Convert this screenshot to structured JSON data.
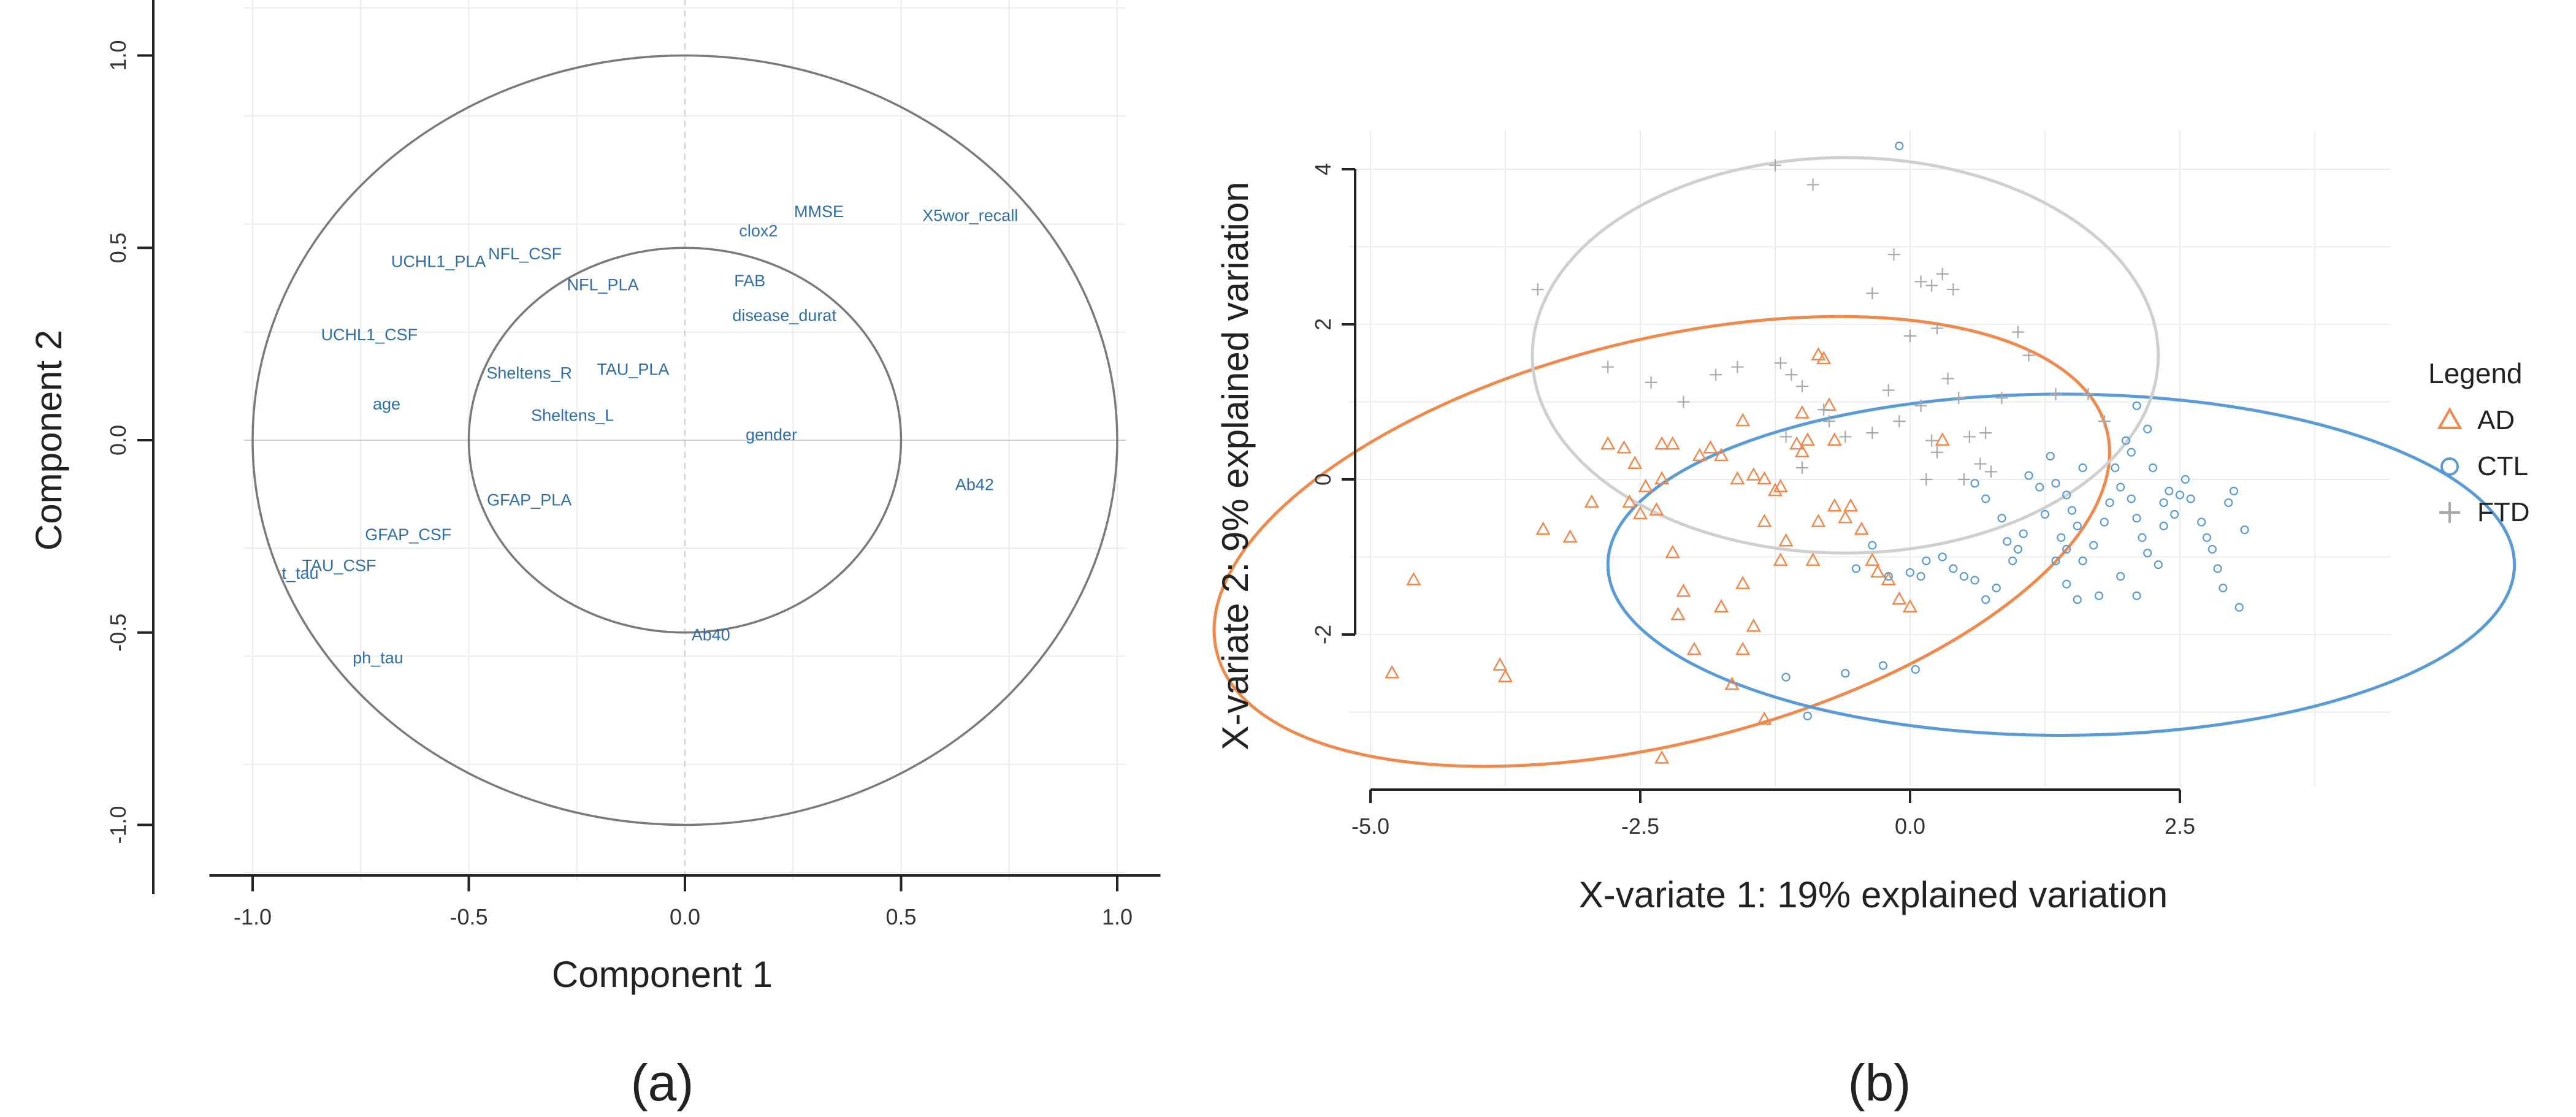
{
  "chart_data": [
    {
      "type": "scatter",
      "subtype": "correlation-circle",
      "panel_label": "(a)",
      "xlabel": "Component 1",
      "ylabel": "Component 2",
      "xlim": [
        -1.1,
        1.1
      ],
      "ylim": [
        -1.05,
        1.05
      ],
      "x_ticks": [
        -1.0,
        -0.5,
        0.0,
        0.5,
        1.0
      ],
      "y_ticks": [
        -1.0,
        -0.5,
        0.0,
        0.5,
        1.0
      ],
      "x_tick_labels": [
        "-1.0",
        "-0.5",
        "0.0",
        "0.5",
        "1.0"
      ],
      "y_tick_labels": [
        "-1.0",
        "-0.5",
        "0.0",
        "0.5",
        "1.0"
      ],
      "circles": [
        1.0,
        0.5
      ],
      "variables": [
        {
          "name": "UCHL1_PLA",
          "x": -0.57,
          "y": 0.45
        },
        {
          "name": "NFL_CSF",
          "x": -0.37,
          "y": 0.47
        },
        {
          "name": "NFL_PLA",
          "x": -0.19,
          "y": 0.39
        },
        {
          "name": "clox2",
          "x": 0.17,
          "y": 0.53
        },
        {
          "name": "MMSE",
          "x": 0.31,
          "y": 0.58
        },
        {
          "name": "X5wor_recall",
          "x": 0.66,
          "y": 0.57
        },
        {
          "name": "FAB",
          "x": 0.15,
          "y": 0.4
        },
        {
          "name": "disease_durat",
          "x": 0.23,
          "y": 0.31
        },
        {
          "name": "UCHL1_CSF",
          "x": -0.73,
          "y": 0.26
        },
        {
          "name": "Sheltens_R",
          "x": -0.36,
          "y": 0.16
        },
        {
          "name": "TAU_PLA",
          "x": -0.12,
          "y": 0.17
        },
        {
          "name": "age",
          "x": -0.69,
          "y": 0.08
        },
        {
          "name": "Sheltens_L",
          "x": -0.26,
          "y": 0.05
        },
        {
          "name": "gender",
          "x": 0.2,
          "y": 0.0
        },
        {
          "name": "Ab42",
          "x": 0.67,
          "y": -0.13
        },
        {
          "name": "GFAP_PLA",
          "x": -0.36,
          "y": -0.17
        },
        {
          "name": "GFAP_CSF",
          "x": -0.64,
          "y": -0.26
        },
        {
          "name": "TAU_CSF",
          "x": -0.8,
          "y": -0.34
        },
        {
          "name": "t_tau",
          "x": -0.89,
          "y": -0.36
        },
        {
          "name": "Ab40",
          "x": 0.06,
          "y": -0.52
        },
        {
          "name": "ph_tau",
          "x": -0.71,
          "y": -0.58
        }
      ]
    },
    {
      "type": "scatter",
      "subtype": "sample-plot-with-ellipses",
      "panel_label": "(b)",
      "xlabel": "X-variate 1: 19% explained variation",
      "ylabel": "X-variate 2: 9% explained variation",
      "xlim": [
        -5.2,
        4.5
      ],
      "ylim": [
        -4.0,
        4.5
      ],
      "x_ticks": [
        -5.0,
        -2.5,
        0.0,
        2.5
      ],
      "y_ticks": [
        -2,
        0,
        2,
        4
      ],
      "x_tick_labels": [
        "-5.0",
        "-2.5",
        "0.0",
        "2.5"
      ],
      "y_tick_labels": [
        "-2",
        "0",
        "2",
        "4"
      ],
      "legend": {
        "title": "Legend",
        "position": "right",
        "entries": [
          {
            "label": "AD",
            "marker": "triangle",
            "color": "#ef8a4e"
          },
          {
            "label": "CTL",
            "marker": "circle",
            "color": "#5b9bd5"
          },
          {
            "label": "FTD",
            "marker": "plus",
            "color": "#b3b3b3"
          }
        ]
      },
      "ellipses": [
        {
          "group": "AD",
          "cx": -2.3,
          "cy": -0.8,
          "rx": 4.25,
          "ry": 2.6,
          "angle_deg": 14,
          "color": "#ef8a4e"
        },
        {
          "group": "CTL",
          "cx": 1.4,
          "cy": -1.1,
          "rx": 4.2,
          "ry": 2.2,
          "angle_deg": 0,
          "color": "#5b9bd5"
        },
        {
          "group": "FTD",
          "cx": -0.6,
          "cy": 1.6,
          "rx": 2.9,
          "ry": 2.55,
          "angle_deg": 0,
          "color": "#cfcfcf"
        }
      ],
      "series": [
        {
          "name": "AD",
          "points": [
            [
              -4.6,
              -1.3
            ],
            [
              -4.8,
              -2.5
            ],
            [
              -3.8,
              -2.4
            ],
            [
              -3.75,
              -2.55
            ],
            [
              -3.4,
              -0.65
            ],
            [
              -3.15,
              -0.75
            ],
            [
              -2.95,
              -0.3
            ],
            [
              -2.8,
              0.45
            ],
            [
              -2.65,
              0.4
            ],
            [
              -2.55,
              0.2
            ],
            [
              -2.45,
              -0.1
            ],
            [
              -2.6,
              -0.3
            ],
            [
              -2.5,
              -0.45
            ],
            [
              -2.35,
              -0.4
            ],
            [
              -2.3,
              0.0
            ],
            [
              -2.2,
              -0.95
            ],
            [
              -2.1,
              -1.45
            ],
            [
              -2.15,
              -1.75
            ],
            [
              -2.0,
              -2.2
            ],
            [
              -2.3,
              0.45
            ],
            [
              -2.2,
              0.45
            ],
            [
              -1.95,
              0.3
            ],
            [
              -1.85,
              0.4
            ],
            [
              -1.75,
              0.3
            ],
            [
              -1.6,
              0.0
            ],
            [
              -1.55,
              -2.2
            ],
            [
              -1.45,
              -1.9
            ],
            [
              -1.65,
              -2.65
            ],
            [
              -1.75,
              -1.65
            ],
            [
              -1.55,
              -1.35
            ],
            [
              -1.45,
              0.05
            ],
            [
              -1.35,
              0.0
            ],
            [
              -1.25,
              -0.15
            ],
            [
              -1.2,
              -0.1
            ],
            [
              -1.35,
              -0.55
            ],
            [
              -1.15,
              -0.8
            ],
            [
              -1.2,
              -1.05
            ],
            [
              -1.05,
              0.45
            ],
            [
              -1.0,
              0.35
            ],
            [
              -0.95,
              0.5
            ],
            [
              -1.0,
              0.85
            ],
            [
              -0.85,
              1.6
            ],
            [
              -0.8,
              1.55
            ],
            [
              -0.75,
              0.95
            ],
            [
              -0.7,
              0.5
            ],
            [
              -0.7,
              -0.35
            ],
            [
              -0.6,
              -0.5
            ],
            [
              -0.45,
              -0.65
            ],
            [
              -0.35,
              -1.05
            ],
            [
              -0.3,
              -1.2
            ],
            [
              -0.2,
              -1.3
            ],
            [
              -0.1,
              -1.55
            ],
            [
              0.0,
              -1.65
            ],
            [
              -0.85,
              -0.55
            ],
            [
              -1.55,
              0.75
            ],
            [
              -1.35,
              -3.1
            ],
            [
              -0.9,
              -1.05
            ],
            [
              0.3,
              0.5
            ],
            [
              -0.55,
              -0.35
            ],
            [
              -2.3,
              -3.6
            ]
          ]
        },
        {
          "name": "CTL",
          "points": [
            [
              -0.1,
              4.3
            ],
            [
              0.6,
              -0.05
            ],
            [
              0.7,
              -0.25
            ],
            [
              0.85,
              -0.5
            ],
            [
              0.9,
              -0.8
            ],
            [
              0.95,
              -1.05
            ],
            [
              1.0,
              -0.9
            ],
            [
              1.05,
              -0.7
            ],
            [
              0.8,
              -1.4
            ],
            [
              0.7,
              -1.55
            ],
            [
              0.6,
              -1.3
            ],
            [
              0.5,
              -1.25
            ],
            [
              0.4,
              -1.15
            ],
            [
              0.3,
              -1.0
            ],
            [
              0.15,
              -1.05
            ],
            [
              0.1,
              -1.25
            ],
            [
              0.0,
              -1.2
            ],
            [
              -0.2,
              -1.25
            ],
            [
              -0.35,
              -0.85
            ],
            [
              -0.5,
              -1.15
            ],
            [
              0.05,
              -2.45
            ],
            [
              -0.25,
              -2.4
            ],
            [
              -0.6,
              -2.5
            ],
            [
              -1.15,
              -2.55
            ],
            [
              -0.95,
              -3.05
            ],
            [
              1.2,
              -0.1
            ],
            [
              1.35,
              -0.05
            ],
            [
              1.45,
              -0.2
            ],
            [
              1.5,
              -0.4
            ],
            [
              1.55,
              -0.6
            ],
            [
              1.4,
              -0.75
            ],
            [
              1.45,
              -0.9
            ],
            [
              1.35,
              -1.05
            ],
            [
              1.45,
              -1.35
            ],
            [
              1.55,
              -1.55
            ],
            [
              1.6,
              -1.05
            ],
            [
              1.7,
              -0.85
            ],
            [
              1.8,
              -0.55
            ],
            [
              1.85,
              -0.3
            ],
            [
              1.95,
              -0.1
            ],
            [
              2.05,
              -0.25
            ],
            [
              2.1,
              -0.5
            ],
            [
              2.15,
              -0.75
            ],
            [
              2.2,
              -0.95
            ],
            [
              2.3,
              -1.1
            ],
            [
              2.35,
              -0.6
            ],
            [
              2.45,
              -0.45
            ],
            [
              2.5,
              -0.2
            ],
            [
              2.55,
              0.0
            ],
            [
              2.6,
              -0.25
            ],
            [
              2.7,
              -0.55
            ],
            [
              2.75,
              -0.75
            ],
            [
              2.8,
              -0.9
            ],
            [
              2.85,
              -1.15
            ],
            [
              2.9,
              -1.4
            ],
            [
              2.95,
              -0.3
            ],
            [
              3.0,
              -0.15
            ],
            [
              3.1,
              -0.65
            ],
            [
              2.2,
              0.65
            ],
            [
              2.1,
              0.95
            ],
            [
              2.05,
              0.35
            ],
            [
              2.0,
              0.5
            ],
            [
              1.9,
              0.15
            ],
            [
              2.25,
              0.15
            ],
            [
              2.35,
              -0.3
            ],
            [
              3.05,
              -1.65
            ],
            [
              1.75,
              -1.5
            ],
            [
              1.95,
              -1.25
            ],
            [
              2.1,
              -1.5
            ],
            [
              1.25,
              -0.45
            ],
            [
              1.1,
              0.05
            ],
            [
              2.4,
              -0.15
            ],
            [
              1.6,
              0.15
            ],
            [
              1.3,
              0.3
            ]
          ]
        },
        {
          "name": "FTD",
          "points": [
            [
              -1.25,
              4.05
            ],
            [
              -0.9,
              3.8
            ],
            [
              -3.45,
              2.45
            ],
            [
              -2.8,
              1.45
            ],
            [
              -2.4,
              1.25
            ],
            [
              -2.1,
              1.0
            ],
            [
              -1.8,
              1.35
            ],
            [
              -1.6,
              1.45
            ],
            [
              -1.2,
              1.5
            ],
            [
              -1.1,
              1.35
            ],
            [
              -1.0,
              1.2
            ],
            [
              -0.8,
              0.9
            ],
            [
              -0.75,
              0.75
            ],
            [
              -0.6,
              0.55
            ],
            [
              -0.35,
              0.6
            ],
            [
              -0.2,
              1.15
            ],
            [
              -0.1,
              0.75
            ],
            [
              0.0,
              1.85
            ],
            [
              0.1,
              0.95
            ],
            [
              0.2,
              0.5
            ],
            [
              0.25,
              0.35
            ],
            [
              0.1,
              2.55
            ],
            [
              0.2,
              2.5
            ],
            [
              0.3,
              2.65
            ],
            [
              0.4,
              2.45
            ],
            [
              -0.35,
              2.4
            ],
            [
              -0.15,
              2.9
            ],
            [
              0.25,
              1.95
            ],
            [
              0.35,
              1.3
            ],
            [
              0.45,
              1.05
            ],
            [
              0.55,
              0.55
            ],
            [
              0.65,
              0.2
            ],
            [
              0.7,
              0.6
            ],
            [
              0.85,
              1.05
            ],
            [
              1.0,
              1.9
            ],
            [
              1.1,
              1.6
            ],
            [
              1.35,
              1.1
            ],
            [
              1.65,
              1.1
            ],
            [
              1.8,
              0.75
            ],
            [
              -1.15,
              0.55
            ],
            [
              0.15,
              0.0
            ],
            [
              0.5,
              0.0
            ],
            [
              0.75,
              0.1
            ],
            [
              -1.0,
              0.15
            ]
          ]
        }
      ]
    }
  ]
}
